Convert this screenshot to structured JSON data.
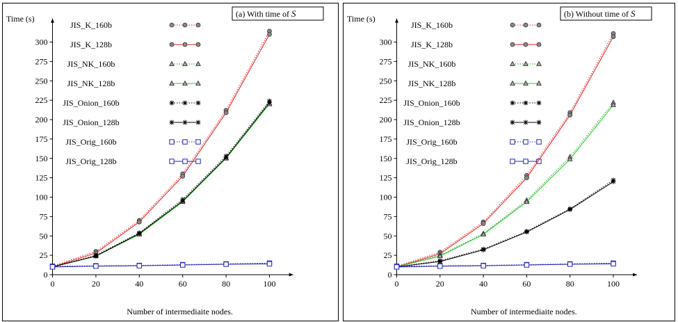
{
  "chart_data": [
    {
      "type": "line",
      "title": "(a) With time of S",
      "title_prefix": "(a) With time of ",
      "title_math": "S",
      "xlabel": "Number of intermediaite nodes.",
      "ylabel": "Time (s)",
      "x": [
        0,
        20,
        40,
        60,
        80,
        100
      ],
      "xlim": [
        0,
        110
      ],
      "ylim": [
        0,
        325
      ],
      "xticks": [
        "0",
        "20",
        "40",
        "60",
        "80",
        "100"
      ],
      "yticks": [
        "0",
        "25",
        "50",
        "75",
        "100",
        "125",
        "150",
        "175",
        "200",
        "225",
        "250",
        "275",
        "300"
      ],
      "grid": false,
      "legend_position": "top-left",
      "series": [
        {
          "name": "JIS_K_160b",
          "color": "#e41a1c",
          "dash": "dotted",
          "marker": "circle",
          "values": [
            11,
            30,
            70,
            130,
            212,
            314
          ]
        },
        {
          "name": "JIS_K_128b",
          "color": "#e41a1c",
          "dash": "solid",
          "marker": "circle",
          "values": [
            10,
            28,
            68,
            127,
            209,
            310
          ]
        },
        {
          "name": "JIS_NK_160b",
          "color": "#1a9f1a",
          "dash": "dotted",
          "marker": "triangle",
          "values": [
            10,
            25,
            53,
            95,
            151,
            221
          ]
        },
        {
          "name": "JIS_NK_128b",
          "color": "#22cc22",
          "dash": "solid",
          "marker": "triangle",
          "values": [
            10,
            24,
            52,
            94,
            150,
            220
          ]
        },
        {
          "name": "JIS_Onion_160b",
          "color": "#000000",
          "dash": "dotted",
          "marker": "star",
          "values": [
            10,
            25,
            54,
            97,
            153,
            224
          ]
        },
        {
          "name": "JIS_Onion_128b",
          "color": "#000000",
          "dash": "solid",
          "marker": "star",
          "values": [
            10,
            24,
            53,
            95,
            151,
            222
          ]
        },
        {
          "name": "JIS_Orig_160b",
          "color": "#2222bb",
          "dash": "dotted",
          "marker": "square",
          "values": [
            11,
            11.5,
            12,
            13,
            14,
            15
          ]
        },
        {
          "name": "JIS_Orig_128b",
          "color": "#2222bb",
          "dash": "solid",
          "marker": "square",
          "values": [
            10,
            11,
            11.5,
            12.5,
            13.5,
            14
          ]
        }
      ]
    },
    {
      "type": "line",
      "title": "(b) Without time of S",
      "title_prefix": "(b) Without time of ",
      "title_math": "S",
      "xlabel": "Number of intermediaite nodes.",
      "ylabel": "Time (s)",
      "x": [
        0,
        20,
        40,
        60,
        80,
        100
      ],
      "xlim": [
        0,
        110
      ],
      "ylim": [
        0,
        325
      ],
      "xticks": [
        "0",
        "20",
        "40",
        "60",
        "80",
        "100"
      ],
      "yticks": [
        "0",
        "25",
        "50",
        "75",
        "100",
        "125",
        "150",
        "175",
        "200",
        "225",
        "250",
        "275",
        "300"
      ],
      "grid": false,
      "legend_position": "top-left",
      "series": [
        {
          "name": "JIS_K_160b",
          "color": "#e41a1c",
          "dash": "dotted",
          "marker": "circle",
          "values": [
            11,
            29,
            68,
            128,
            209,
            311
          ]
        },
        {
          "name": "JIS_K_128b",
          "color": "#e41a1c",
          "dash": "solid",
          "marker": "circle",
          "values": [
            10,
            27,
            66,
            125,
            206,
            307
          ]
        },
        {
          "name": "JIS_NK_160b",
          "color": "#1a9f1a",
          "dash": "dotted",
          "marker": "triangle",
          "values": [
            10,
            25,
            53,
            96,
            152,
            222
          ]
        },
        {
          "name": "JIS_NK_128b",
          "color": "#22cc22",
          "dash": "solid",
          "marker": "triangle",
          "values": [
            10,
            24,
            52,
            94,
            149,
            219
          ]
        },
        {
          "name": "JIS_Onion_160b",
          "color": "#000000",
          "dash": "dotted",
          "marker": "star",
          "values": [
            10,
            18,
            33,
            56,
            85,
            122
          ]
        },
        {
          "name": "JIS_Onion_128b",
          "color": "#000000",
          "dash": "solid",
          "marker": "star",
          "values": [
            10,
            17,
            32,
            55,
            84,
            120
          ]
        },
        {
          "name": "JIS_Orig_160b",
          "color": "#2222bb",
          "dash": "dotted",
          "marker": "square",
          "values": [
            11,
            11.5,
            12,
            13,
            14,
            15
          ]
        },
        {
          "name": "JIS_Orig_128b",
          "color": "#2222bb",
          "dash": "solid",
          "marker": "square",
          "values": [
            10,
            11,
            11.5,
            12.5,
            13.5,
            14
          ]
        }
      ]
    }
  ]
}
